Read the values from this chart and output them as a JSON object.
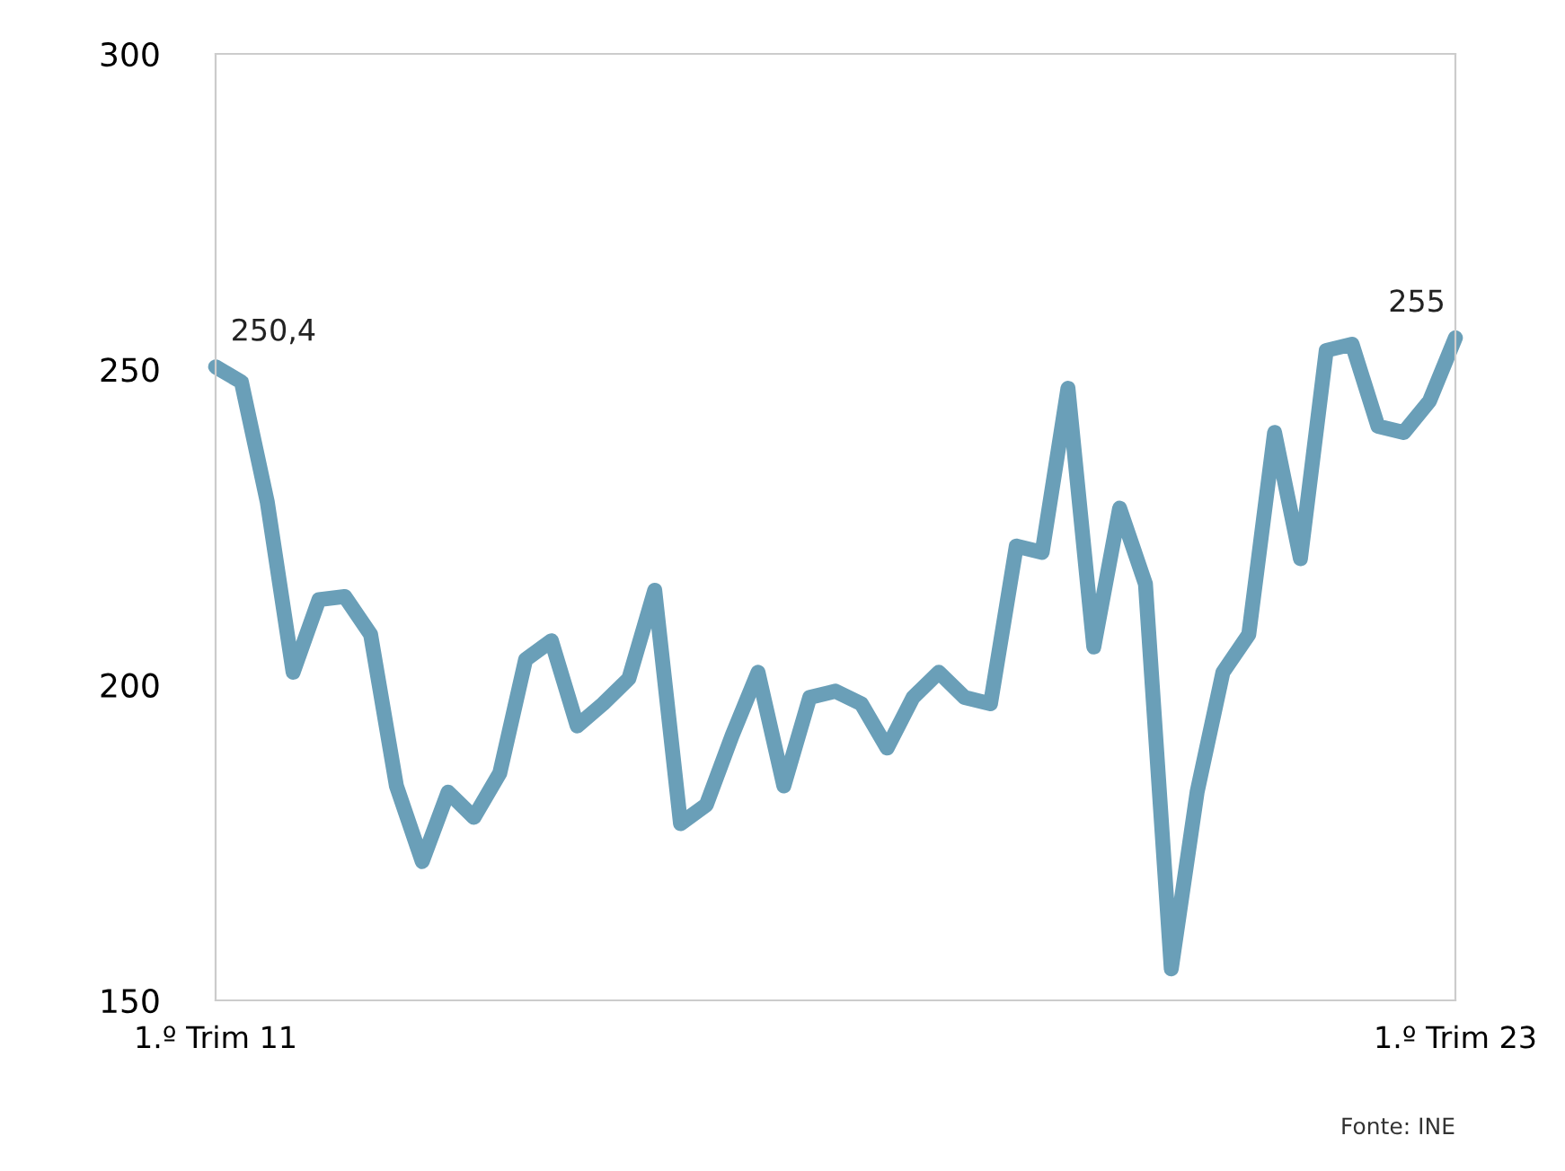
{
  "chart_data": {
    "type": "line",
    "categories": [
      "1.º Trim 11",
      null,
      null,
      null,
      null,
      null,
      null,
      null,
      null,
      null,
      null,
      null,
      null,
      null,
      null,
      null,
      null,
      null,
      null,
      null,
      null,
      null,
      null,
      null,
      null,
      null,
      null,
      null,
      null,
      null,
      null,
      null,
      null,
      null,
      null,
      null,
      null,
      null,
      null,
      null,
      null,
      null,
      null,
      null,
      null,
      null,
      null,
      null,
      "1.º Trim 23"
    ],
    "series": [
      {
        "color": "#6a9fb8",
        "values": [
          250.4,
          248,
          229,
          202,
          213.5,
          214,
          208,
          184,
          172,
          183,
          179,
          186,
          204,
          207,
          193.5,
          197,
          201,
          215,
          178,
          181,
          192,
          202,
          184,
          198,
          199,
          197,
          190,
          198,
          202,
          198,
          197,
          222,
          221,
          247,
          206,
          228,
          216,
          155,
          183,
          202,
          208,
          240,
          220,
          253,
          254,
          241,
          240,
          245,
          255
        ],
        "value_labels": [
          "250,4",
          null,
          null,
          null,
          null,
          null,
          null,
          null,
          null,
          null,
          null,
          null,
          null,
          null,
          null,
          null,
          null,
          null,
          null,
          null,
          null,
          null,
          null,
          null,
          null,
          null,
          null,
          null,
          null,
          null,
          null,
          null,
          null,
          null,
          null,
          null,
          null,
          null,
          null,
          null,
          null,
          null,
          null,
          null,
          null,
          null,
          null,
          null,
          "255"
        ]
      }
    ],
    "ylim": [
      150,
      300
    ],
    "yticks": [
      150,
      200,
      250,
      300
    ],
    "grid": false,
    "legend": false,
    "marker": "none",
    "line_style": "solid",
    "annotations": [
      "Fonte: INE"
    ]
  }
}
